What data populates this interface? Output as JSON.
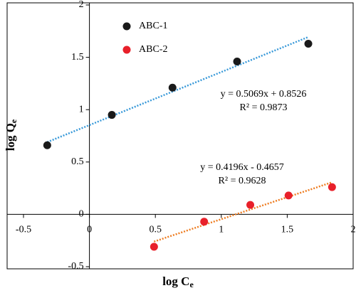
{
  "chart_data": {
    "type": "scatter",
    "x_label": {
      "text": "log C",
      "subscript": "e"
    },
    "y_label": {
      "text": "log Q",
      "subscript": "e"
    },
    "xlim": [
      -0.5,
      2
    ],
    "xticks": [
      -0.5,
      0,
      0.5,
      1,
      1.5,
      2
    ],
    "ylim": [
      -0.5,
      2
    ],
    "yticks": [
      -0.5,
      0,
      0.5,
      1,
      1.5,
      2
    ],
    "legend": "top-left",
    "series": [
      {
        "name": "ABC-1",
        "color": "#1a1a1a",
        "x": [
          -0.32,
          0.17,
          0.63,
          1.12,
          1.66
        ],
        "values": [
          0.66,
          0.95,
          1.21,
          1.46,
          1.63
        ],
        "trendline": {
          "color": "#3a9ad9",
          "slope": 0.5069,
          "intercept": 0.8526,
          "equation": "y = 0.5069x + 0.8526",
          "r_squared": "R² = 0.9873"
        }
      },
      {
        "name": "ABC-2",
        "color": "#e8202a",
        "x": [
          0.49,
          0.87,
          1.22,
          1.51,
          1.84
        ],
        "values": [
          -0.31,
          -0.07,
          0.09,
          0.18,
          0.26
        ],
        "trendline": {
          "color": "#ee7d22",
          "slope": 0.4196,
          "intercept": -0.4657,
          "equation": "y = 0.4196x - 0.4657",
          "r_squared": "R² = 0.9628"
        }
      }
    ]
  }
}
